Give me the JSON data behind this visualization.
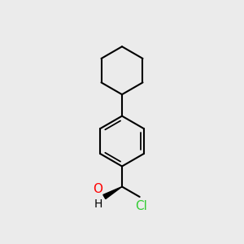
{
  "background_color": "#ebebeb",
  "bond_color": "#000000",
  "bond_width": 1.5,
  "oh_color": "#ff0000",
  "h_color": "#000000",
  "cl_color": "#33cc33",
  "oh_label": "O",
  "h_label": "H",
  "cl_label": "Cl",
  "figsize": [
    3.0,
    3.0
  ],
  "dpi": 100
}
